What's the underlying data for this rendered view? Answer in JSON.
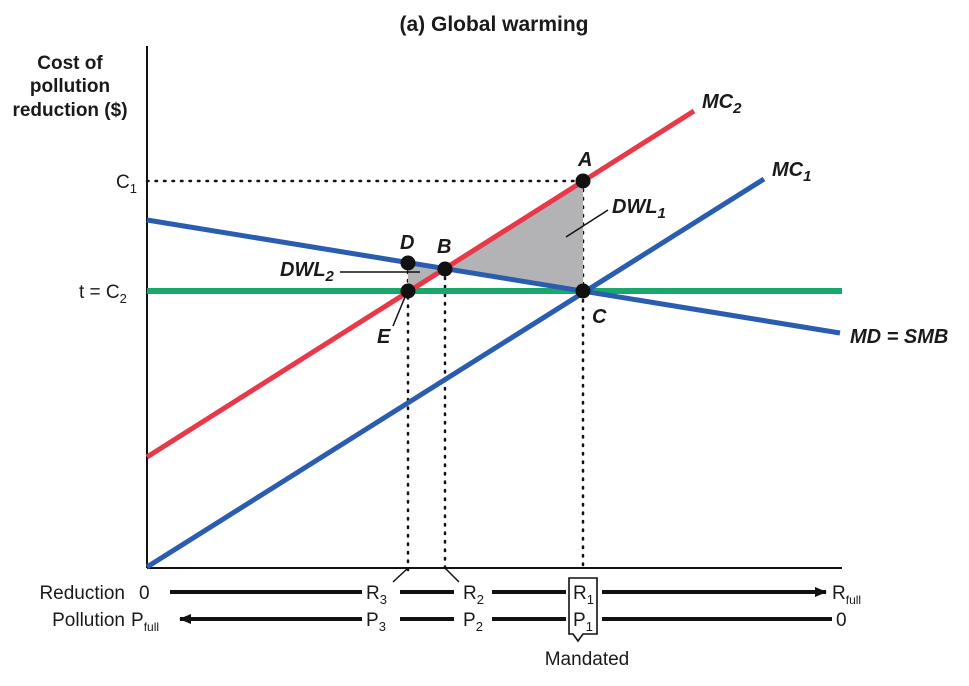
{
  "title": "(a) Global warming",
  "y_axis_title": [
    "Cost of",
    "pollution",
    "reduction ($)"
  ],
  "y_ticks": {
    "c1": "C",
    "c1_sub": "1",
    "t_c2_prefix": "t = C",
    "t_c2_sub": "2"
  },
  "curves": {
    "mc2": {
      "main": "MC",
      "sub": "2"
    },
    "mc1": {
      "main": "MC",
      "sub": "1"
    },
    "md": "MD = SMB"
  },
  "points": {
    "a": "A",
    "b": "B",
    "c": "C",
    "d": "D",
    "e": "E"
  },
  "dwl1": {
    "main": "DWL",
    "sub": "1"
  },
  "dwl2": {
    "main": "DWL",
    "sub": "2"
  },
  "bottom": {
    "reduction_label": "Reduction",
    "pollution_label": "Pollution",
    "zero": "0",
    "r3": "R",
    "r3_sub": "3",
    "r2": "R",
    "r2_sub": "2",
    "r1": "R",
    "r1_sub": "1",
    "r_full": "R",
    "r_full_sub": "full",
    "p_full": "P",
    "p_full_sub": "full",
    "p3": "P",
    "p3_sub": "3",
    "p2": "P",
    "p2_sub": "2",
    "p1": "P",
    "p1_sub": "1",
    "p_zero": "0",
    "mandated": "Mandated"
  },
  "colors": {
    "mc2": "#e8384a",
    "mc1": "#2a5db0",
    "md": "#2a5db0",
    "tax": "#18a86b",
    "dwl": "#b3b3b5"
  }
}
